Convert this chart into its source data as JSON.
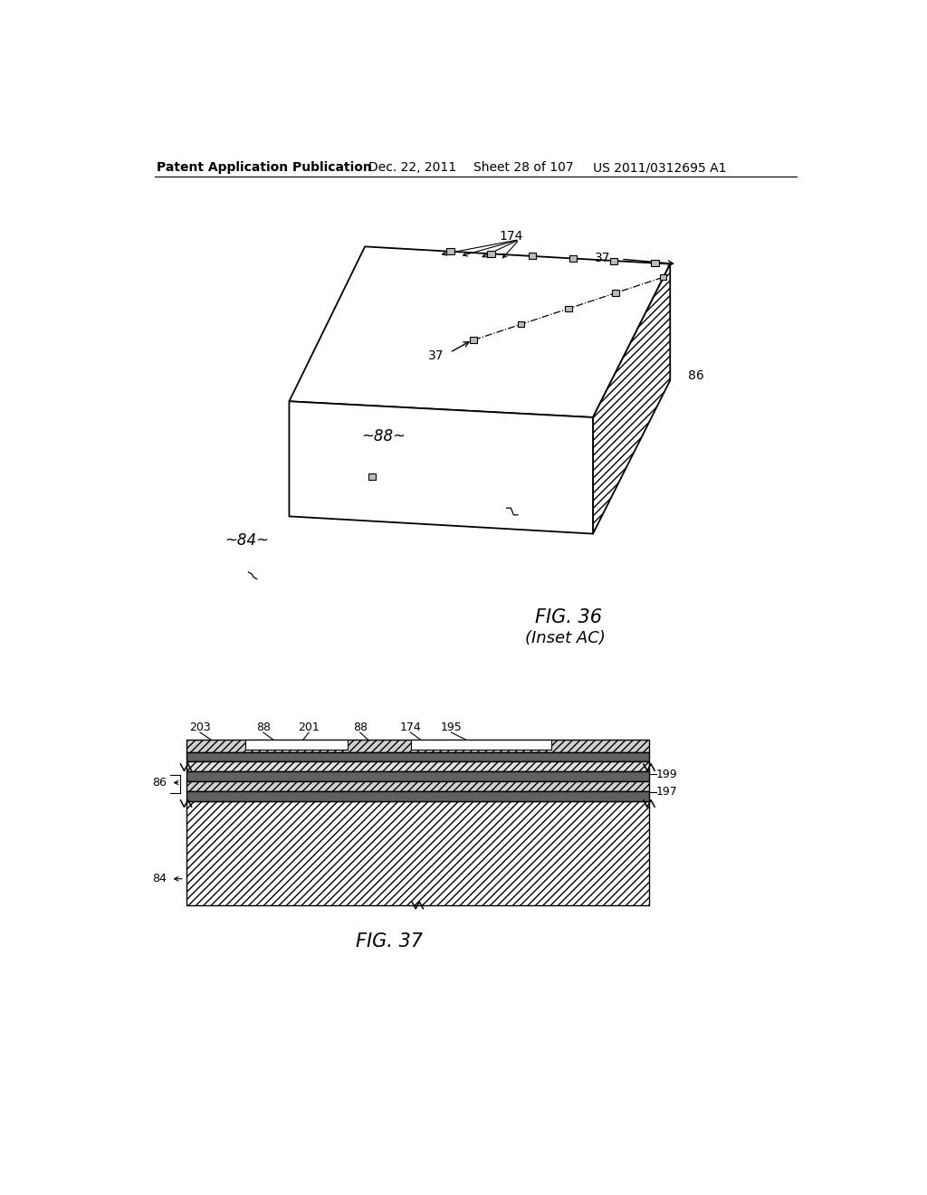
{
  "bg_color": "#ffffff",
  "header_text": "Patent Application Publication",
  "header_date": "Dec. 22, 2011",
  "header_sheet": "Sheet 28 of 107",
  "header_patent": "US 2011/0312695 A1",
  "fig36_label": "FIG. 36",
  "fig36_sublabel": "(Inset AC)",
  "fig37_label": "FIG. 37",
  "line_color": "#000000",
  "hatch_color": "#555555",
  "label_color": "#333333"
}
